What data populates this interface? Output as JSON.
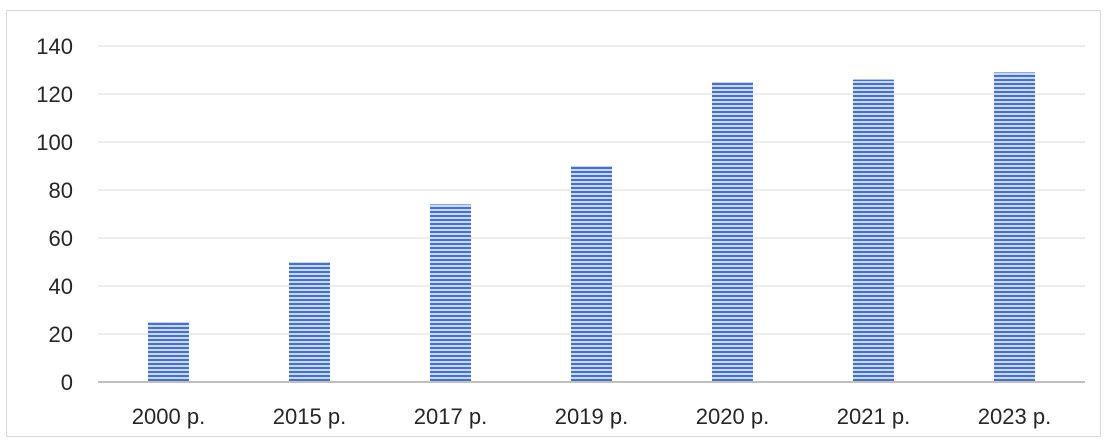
{
  "chart_data": {
    "type": "bar",
    "title": "",
    "xlabel": "",
    "ylabel": "",
    "categories": [
      "2000 р.",
      "2015 р.",
      "2017 р.",
      "2019 р.",
      "2020 р.",
      "2021 р.",
      "2023 р."
    ],
    "values": [
      25,
      50,
      74,
      90,
      125,
      126,
      129
    ],
    "ylim": [
      0,
      140
    ],
    "yticks": [
      0,
      20,
      40,
      60,
      80,
      100,
      120,
      140
    ],
    "grid": true,
    "legend": "none",
    "bar_fill": "#4472c4",
    "bar_stripe_color": "#c9d6ee",
    "bar_pattern": "horizontal-stripes",
    "grid_color": "#d9d9d9",
    "axis_color": "#bfbfbf"
  }
}
